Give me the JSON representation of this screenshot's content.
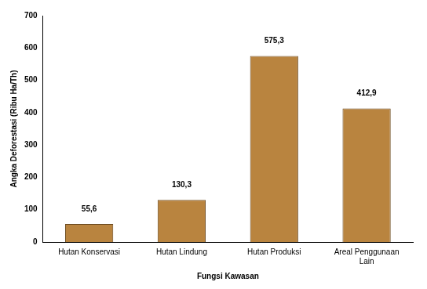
{
  "chart_data": {
    "type": "bar",
    "x_label": "Fungsi Kawasan",
    "y_label": "Angka Deforestasi (Ribu Ha/Th)",
    "categories": [
      "Hutan Konservasi",
      "Hutan Lindung",
      "Hutan Produksi",
      "Areal Penggunaan Lain"
    ],
    "values": [
      55.6,
      130.3,
      575.3,
      412.9
    ],
    "value_labels": [
      "55,6",
      "130,3",
      "575,3",
      "412,9"
    ],
    "color": "#b9843f",
    "ylim": [
      0,
      700
    ],
    "yticks": [
      0,
      100,
      200,
      300,
      400,
      500,
      600,
      700
    ],
    "grid": false,
    "data_labels": true
  }
}
